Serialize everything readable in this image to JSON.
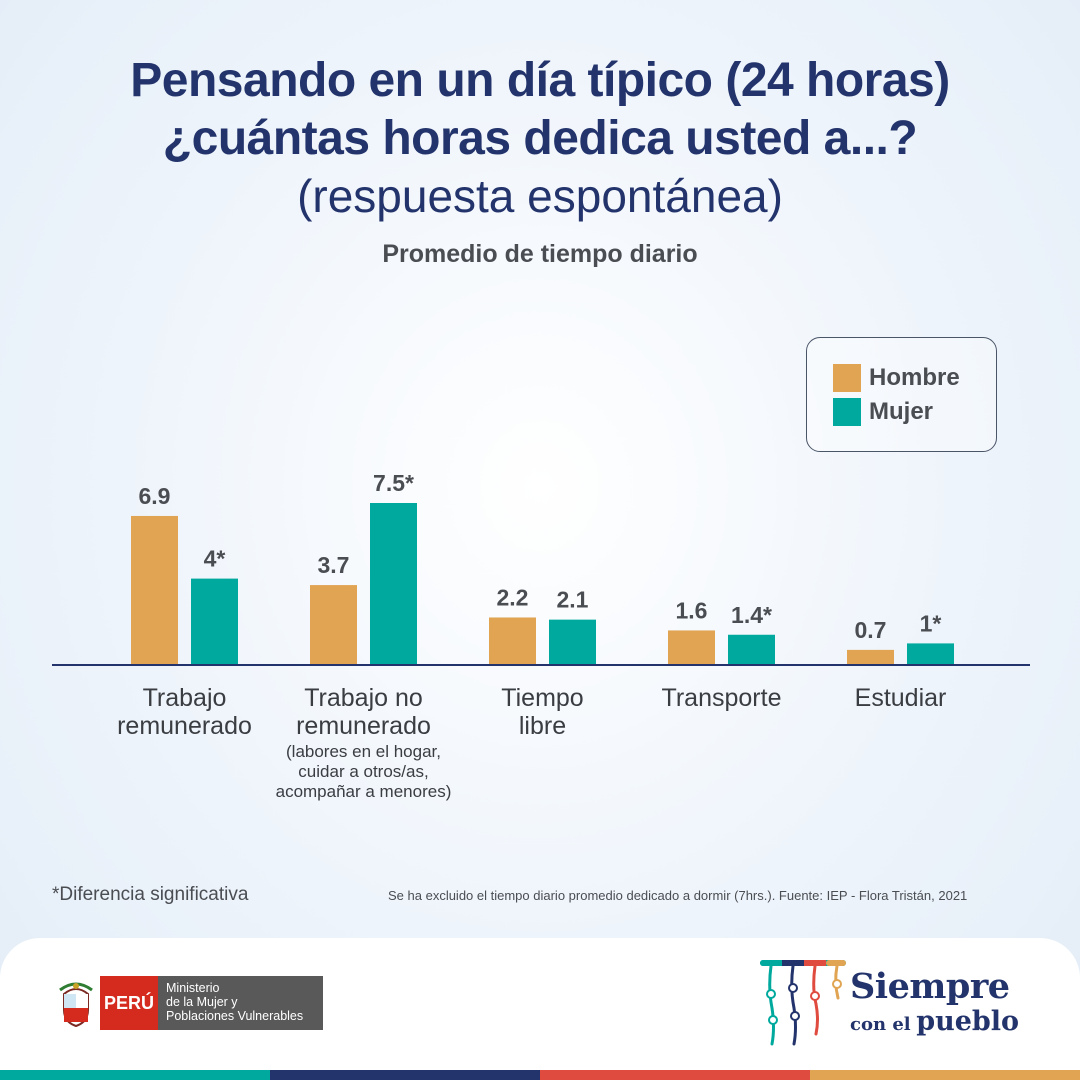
{
  "header": {
    "title_line1": "Pensando en un día típico (24 horas)",
    "title_line2": "¿cuántas horas dedica usted a...?",
    "title_line3": "(respuesta espontánea)",
    "subtitle": "Promedio de tiempo diario"
  },
  "legend": {
    "items": [
      {
        "label": "Hombre",
        "color": "#e0a452"
      },
      {
        "label": "Mujer",
        "color": "#00a99d"
      }
    ]
  },
  "chart_data": {
    "type": "bar",
    "title": "Promedio de tiempo diario",
    "categories": [
      {
        "lines": [
          "Trabajo",
          "remunerado"
        ],
        "note": []
      },
      {
        "lines": [
          "Trabajo no",
          "remunerado"
        ],
        "note": [
          "(labores en el hogar,",
          "cuidar a otros/as,",
          "acompañar a menores)"
        ]
      },
      {
        "lines": [
          "Tiempo",
          "libre"
        ],
        "note": []
      },
      {
        "lines": [
          "Transporte"
        ],
        "note": []
      },
      {
        "lines": [
          "Estudiar"
        ],
        "note": []
      }
    ],
    "series": [
      {
        "name": "Hombre",
        "color": "#e0a452",
        "values": [
          6.9,
          3.7,
          2.2,
          1.6,
          0.7
        ],
        "labels": [
          "6.9",
          "3.7",
          "2.2",
          "1.6",
          "0.7"
        ]
      },
      {
        "name": "Mujer",
        "color": "#00a99d",
        "values": [
          4,
          7.5,
          2.1,
          1.4,
          1
        ],
        "labels": [
          "4*",
          "7.5*",
          "2.1",
          "1.4*",
          "1*"
        ]
      }
    ],
    "ylim": [
      0,
      7.5
    ],
    "grid": false,
    "legend_position": "top-right"
  },
  "footer": {
    "footnote": "*Diferencia significativa",
    "source": "Se ha excluido el tiempo diario promedio dedicado a dormir (7hrs.). Fuente: IEP - Flora Tristán, 2021",
    "peru_label": "PERÚ",
    "ministry_lines": [
      "Ministerio",
      "de la Mujer y",
      "Poblaciones Vulnerables"
    ],
    "brand_line1": "Siempre",
    "brand_line2_small": "con el",
    "brand_line2_big": "pueblo",
    "stripe_colors": [
      "#00a99d",
      "#23336b",
      "#e04b3f",
      "#e0a452"
    ]
  }
}
